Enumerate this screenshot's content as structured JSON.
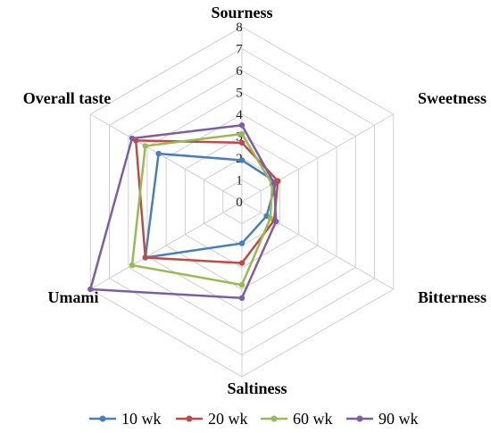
{
  "chart_data": {
    "type": "radar",
    "axes": [
      "Sourness",
      "Sweetness",
      "Bitterness",
      "Saltiness",
      "Umami",
      "Overall taste"
    ],
    "rlim": [
      0,
      8
    ],
    "ticks": [
      "0",
      "1",
      "2",
      "3",
      "4",
      "5",
      "6",
      "7",
      "8"
    ],
    "grid": true,
    "legend_position": "bottom",
    "series": [
      {
        "name": "10 wk",
        "color": "#4a7ebb",
        "values": [
          1.9,
          1.8,
          1.3,
          1.9,
          5.1,
          4.4
        ]
      },
      {
        "name": "20 wk",
        "color": "#be4b48",
        "values": [
          2.7,
          1.9,
          1.7,
          2.8,
          5.1,
          5.6
        ]
      },
      {
        "name": "60 wk",
        "color": "#98b954",
        "values": [
          3.1,
          1.6,
          1.5,
          3.8,
          5.8,
          5.1
        ]
      },
      {
        "name": "90 wk",
        "color": "#7d5fa0",
        "values": [
          3.5,
          1.7,
          1.8,
          4.4,
          8.0,
          5.8
        ]
      }
    ]
  }
}
